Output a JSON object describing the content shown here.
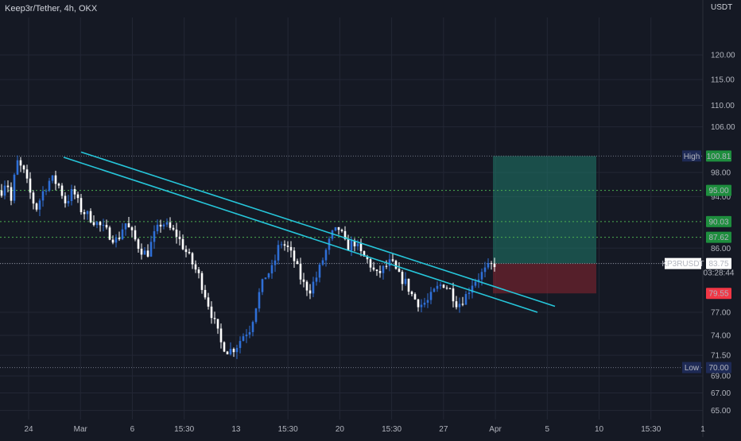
{
  "header": {
    "title": "Keep3r/Tether, 4h, OKX",
    "currency": "USDT"
  },
  "colors": {
    "background": "#151924",
    "grid": "#232735",
    "candle_up": "#2f6fd6",
    "candle_down": "#ffffff",
    "trendline": "#26c6da",
    "level_line": "#4caf50",
    "profit_zone": "#1f7a6a",
    "loss_zone": "#8a2430",
    "high_low_line": "#6f7584",
    "price_badge": "#ffffff",
    "stop_badge": "#f23645",
    "target_badge": "#1e8e3e",
    "high_low_badge": "#1e2a55"
  },
  "chart_data": {
    "type": "candlestick",
    "title": "Keep3r/Tether, 4h, OKX",
    "symbol": "KP3RUSDT",
    "ylabel": "USDT",
    "y_scale": "log",
    "ylim": [
      64,
      128
    ],
    "y_ticks": [
      65.0,
      67.0,
      69.0,
      71.5,
      74.0,
      77.0,
      83.75,
      86.0,
      94.0,
      98.0,
      106.0,
      110.0,
      115.0,
      120.0
    ],
    "x_tick_labels": [
      "24",
      "Mar",
      "6",
      "15:30",
      "13",
      "15:30",
      "20",
      "15:30",
      "27",
      "Apr",
      "5",
      "10",
      "15:30",
      "1"
    ],
    "levels": {
      "high": {
        "label": "High",
        "value": 100.81
      },
      "low": {
        "label": "Low",
        "value": 70.0
      },
      "last_price": {
        "symbol": "KP3RUSDT",
        "value": 83.75,
        "countdown": "03:28:44"
      },
      "targets": [
        95.0,
        90.03,
        87.62
      ],
      "stop": 79.55,
      "badge_labels": [
        "100.81",
        "95.00",
        "90.03",
        "87.62",
        "83.75",
        "79.55",
        "70.00"
      ]
    },
    "trendlines": [
      {
        "name": "upper",
        "from_price": 101.5,
        "to_price": 77.8
      },
      {
        "name": "lower",
        "from_price": 100.6,
        "to_price": 77.0
      }
    ],
    "position": {
      "entry": 83.75,
      "take_profit": 100.81,
      "stop_loss": 79.55
    },
    "price_path": [
      [
        0,
        95
      ],
      [
        0.01,
        97
      ],
      [
        0.02,
        93
      ],
      [
        0.03,
        100
      ],
      [
        0.045,
        98
      ],
      [
        0.06,
        94
      ],
      [
        0.07,
        92
      ],
      [
        0.085,
        95
      ],
      [
        0.1,
        97
      ],
      [
        0.115,
        96
      ],
      [
        0.13,
        93
      ],
      [
        0.145,
        95
      ],
      [
        0.16,
        92
      ],
      [
        0.175,
        91
      ],
      [
        0.19,
        90
      ],
      [
        0.205,
        89
      ],
      [
        0.22,
        88
      ],
      [
        0.235,
        87
      ],
      [
        0.25,
        90
      ],
      [
        0.265,
        88
      ],
      [
        0.28,
        86
      ],
      [
        0.295,
        85
      ],
      [
        0.31,
        88
      ],
      [
        0.325,
        90
      ],
      [
        0.34,
        89
      ],
      [
        0.355,
        88
      ],
      [
        0.37,
        86
      ],
      [
        0.385,
        84
      ],
      [
        0.4,
        82
      ],
      [
        0.415,
        79
      ],
      [
        0.43,
        76
      ],
      [
        0.445,
        73
      ],
      [
        0.46,
        72
      ],
      [
        0.475,
        72.5
      ],
      [
        0.49,
        74
      ],
      [
        0.505,
        75
      ],
      [
        0.52,
        79
      ],
      [
        0.535,
        82
      ],
      [
        0.55,
        83
      ],
      [
        0.565,
        87
      ],
      [
        0.58,
        86
      ],
      [
        0.595,
        84
      ],
      [
        0.61,
        81
      ],
      [
        0.625,
        80
      ],
      [
        0.64,
        82
      ],
      [
        0.655,
        85
      ],
      [
        0.67,
        88
      ],
      [
        0.685,
        89
      ],
      [
        0.7,
        86
      ],
      [
        0.715,
        87
      ],
      [
        0.73,
        85
      ],
      [
        0.745,
        84
      ],
      [
        0.76,
        82
      ],
      [
        0.775,
        83
      ],
      [
        0.79,
        84
      ],
      [
        0.805,
        82
      ],
      [
        0.82,
        81
      ],
      [
        0.835,
        79
      ],
      [
        0.85,
        78
      ],
      [
        0.865,
        78.5
      ],
      [
        0.88,
        80
      ],
      [
        0.895,
        81
      ],
      [
        0.91,
        80
      ],
      [
        0.925,
        78
      ],
      [
        0.94,
        79
      ],
      [
        0.955,
        81
      ],
      [
        0.97,
        82
      ],
      [
        0.985,
        83
      ],
      [
        1,
        83.75
      ]
    ]
  }
}
